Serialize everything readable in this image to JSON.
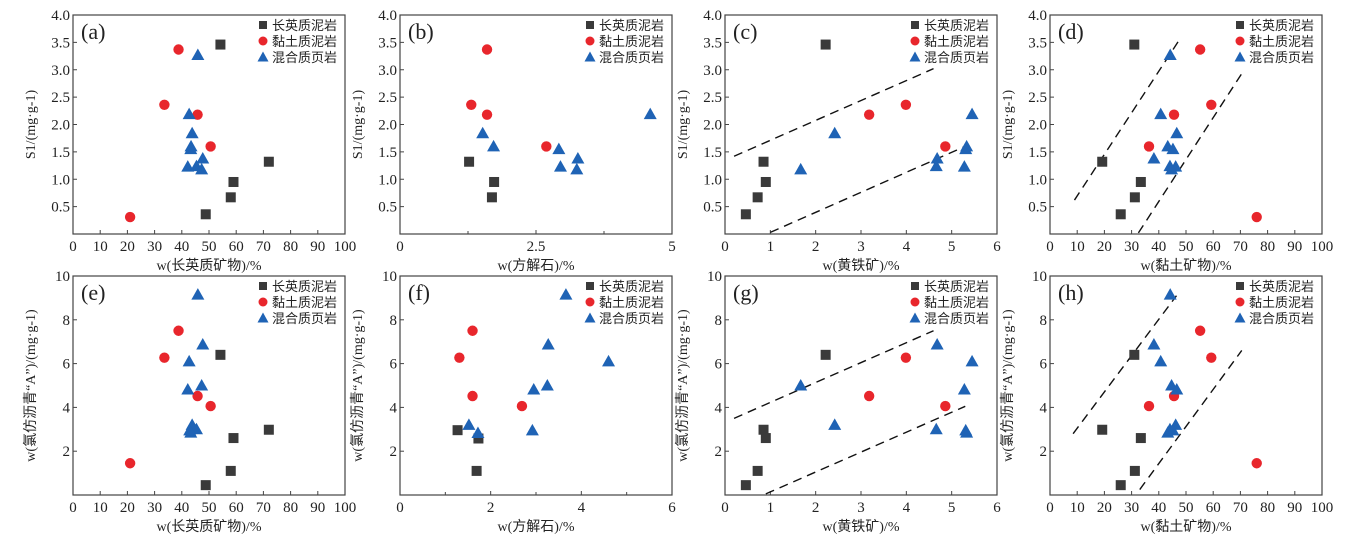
{
  "figure": {
    "legend_labels": [
      "长英质泥岩",
      "黏土质泥岩",
      "混合质页岩"
    ],
    "series_colors": {
      "长英质泥岩": "#3a3a3a",
      "黏土质泥岩": "#e8262c",
      "混合质页岩": "#1f63b5"
    },
    "series_markers": {
      "长英质泥岩": "square",
      "黏土质泥岩": "circle",
      "混合质页岩": "triangle"
    }
  },
  "chart_data": [
    {
      "id": "a",
      "panel_label": "(a)",
      "type": "scatter",
      "xlabel": "w(长英质矿物)/%",
      "ylabel": "S1/(mg·g-1)",
      "xlim": [
        0,
        100
      ],
      "ylim": [
        0,
        4.0
      ],
      "xticks": [
        0,
        10,
        20,
        30,
        40,
        50,
        60,
        70,
        80,
        90,
        100
      ],
      "xtick_labels": [
        "0",
        "10",
        "20",
        "30",
        "40",
        "50",
        "60",
        "70",
        "80",
        "90",
        "100"
      ],
      "yticks": [
        0.5,
        1.0,
        1.5,
        2.0,
        2.5,
        3.0,
        3.5,
        4.0
      ],
      "ytick_labels": [
        "0.5",
        "1.0",
        "1.5",
        "2.0",
        "2.5",
        "3.0",
        "3.5",
        "4.0"
      ],
      "legend": "top-right",
      "series": [
        {
          "name": "长英质泥岩",
          "points": [
            [
              54.2,
              3.46
            ],
            [
              72.0,
              1.32
            ],
            [
              59.0,
              0.95
            ],
            [
              58.0,
              0.67
            ],
            [
              48.8,
              0.36
            ]
          ]
        },
        {
          "name": "黏土质泥岩",
          "points": [
            [
              38.8,
              3.37
            ],
            [
              33.6,
              2.36
            ],
            [
              45.8,
              2.18
            ],
            [
              50.6,
              1.6
            ],
            [
              21.0,
              0.31
            ]
          ]
        },
        {
          "name": "混合质页岩",
          "points": [
            [
              45.9,
              3.27
            ],
            [
              42.7,
              2.19
            ],
            [
              43.8,
              1.84
            ],
            [
              43.4,
              1.6
            ],
            [
              43.3,
              1.55
            ],
            [
              47.7,
              1.38
            ],
            [
              42.2,
              1.23
            ],
            [
              45.4,
              1.24
            ],
            [
              47.3,
              1.18
            ]
          ]
        }
      ],
      "trendlines": []
    },
    {
      "id": "b",
      "panel_label": "(b)",
      "type": "scatter",
      "xlabel": "w(方解石)/%",
      "ylabel": "S1/(mg·g-1)",
      "xlim": [
        0,
        5
      ],
      "ylim": [
        0,
        4.0
      ],
      "xticks": [
        0,
        2.5,
        5
      ],
      "xtick_labels": [
        "0",
        "2.5",
        "5"
      ],
      "xminor": [
        1.25,
        3.75
      ],
      "yticks": [
        0.5,
        1.0,
        1.5,
        2.0,
        2.5,
        3.0,
        3.5,
        4.0
      ],
      "ytick_labels": [
        "0.5",
        "1.0",
        "1.5",
        "2.0",
        "2.5",
        "3.0",
        "3.5",
        "4.0"
      ],
      "legend": "top-right",
      "series": [
        {
          "name": "长英质泥岩",
          "points": [
            [
              1.27,
              1.32
            ],
            [
              1.73,
              0.95
            ],
            [
              1.69,
              0.67
            ]
          ]
        },
        {
          "name": "黏土质泥岩",
          "points": [
            [
              1.6,
              3.37
            ],
            [
              1.31,
              2.36
            ],
            [
              1.6,
              2.18
            ],
            [
              2.69,
              1.6
            ]
          ]
        },
        {
          "name": "混合质页岩",
          "points": [
            [
              4.6,
              2.19
            ],
            [
              1.52,
              1.84
            ],
            [
              1.72,
              1.6
            ],
            [
              2.92,
              1.55
            ],
            [
              3.27,
              1.38
            ],
            [
              2.95,
              1.23
            ],
            [
              3.25,
              1.18
            ]
          ]
        }
      ],
      "trendlines": []
    },
    {
      "id": "c",
      "panel_label": "(c)",
      "type": "scatter",
      "xlabel": "w(黄铁矿)/%",
      "ylabel": "S1/(mg·g-1)",
      "xlim": [
        0,
        6
      ],
      "ylim": [
        0,
        4.0
      ],
      "xticks": [
        0,
        1,
        2,
        3,
        4,
        5,
        6
      ],
      "xtick_labels": [
        "0",
        "1",
        "2",
        "3",
        "4",
        "5",
        "6"
      ],
      "yticks": [
        0.5,
        1.0,
        1.5,
        2.0,
        2.5,
        3.0,
        3.5,
        4.0
      ],
      "ytick_labels": [
        "0.5",
        "1.0",
        "1.5",
        "2.0",
        "2.5",
        "3.0",
        "3.5",
        "4.0"
      ],
      "legend": "top-right",
      "series": [
        {
          "name": "长英质泥岩",
          "points": [
            [
              2.22,
              3.46
            ],
            [
              0.85,
              1.32
            ],
            [
              0.9,
              0.95
            ],
            [
              0.72,
              0.67
            ],
            [
              0.46,
              0.36
            ]
          ]
        },
        {
          "name": "黏土质泥岩",
          "points": [
            [
              3.99,
              2.36
            ],
            [
              3.18,
              2.18
            ],
            [
              4.86,
              1.6
            ]
          ]
        },
        {
          "name": "混合质页岩",
          "points": [
            [
              5.45,
              2.19
            ],
            [
              2.42,
              1.84
            ],
            [
              5.33,
              1.6
            ],
            [
              5.31,
              1.55
            ],
            [
              4.68,
              1.38
            ],
            [
              1.67,
              1.18
            ],
            [
              4.66,
              1.24
            ],
            [
              5.28,
              1.23
            ]
          ]
        }
      ],
      "trendlines": [
        [
          [
            0.2,
            1.42
          ],
          [
            4.6,
            3.02
          ]
        ],
        [
          [
            1.0,
            0.03
          ],
          [
            5.35,
            1.62
          ]
        ]
      ]
    },
    {
      "id": "d",
      "panel_label": "(d)",
      "type": "scatter",
      "xlabel": "w(黏土矿物)/%",
      "ylabel": "S1/(mg·g-1)",
      "xlim": [
        0,
        100
      ],
      "ylim": [
        0,
        4.0
      ],
      "xticks": [
        0,
        10,
        20,
        30,
        40,
        50,
        60,
        70,
        80,
        90,
        100
      ],
      "xtick_labels": [
        "0",
        "10",
        "20",
        "30",
        "40",
        "50",
        "60",
        "70",
        "80",
        "90",
        "100"
      ],
      "yticks": [
        0.5,
        1.0,
        1.5,
        2.0,
        2.5,
        3.0,
        3.5,
        4.0
      ],
      "ytick_labels": [
        "0.5",
        "1.0",
        "1.5",
        "2.0",
        "2.5",
        "3.0",
        "3.5",
        "4.0"
      ],
      "legend": "top-right",
      "series": [
        {
          "name": "长英质泥岩",
          "points": [
            [
              31.0,
              3.46
            ],
            [
              19.2,
              1.32
            ],
            [
              33.4,
              0.95
            ],
            [
              31.2,
              0.67
            ],
            [
              26.0,
              0.36
            ]
          ]
        },
        {
          "name": "黏土质泥岩",
          "points": [
            [
              55.2,
              3.37
            ],
            [
              59.3,
              2.36
            ],
            [
              45.6,
              2.18
            ],
            [
              36.4,
              1.6
            ],
            [
              76.0,
              0.31
            ]
          ]
        },
        {
          "name": "混合质页岩",
          "points": [
            [
              44.2,
              3.27
            ],
            [
              40.7,
              2.19
            ],
            [
              46.6,
              1.84
            ],
            [
              43.3,
              1.6
            ],
            [
              45.2,
              1.55
            ],
            [
              38.2,
              1.38
            ],
            [
              44.1,
              1.24
            ],
            [
              46.2,
              1.23
            ],
            [
              44.7,
              1.18
            ]
          ]
        }
      ],
      "trendlines": [
        [
          [
            9.0,
            0.62
          ],
          [
            48.0,
            3.58
          ]
        ],
        [
          [
            32.5,
            0.02
          ],
          [
            70.5,
            2.93
          ]
        ]
      ]
    },
    {
      "id": "e",
      "panel_label": "(e)",
      "type": "scatter",
      "xlabel": "w(长英质矿物)/%",
      "ylabel": "w(氯仿沥青“A”)/(mg·g-1)",
      "xlim": [
        0,
        100
      ],
      "ylim": [
        0,
        10
      ],
      "xticks": [
        0,
        10,
        20,
        30,
        40,
        50,
        60,
        70,
        80,
        90,
        100
      ],
      "xtick_labels": [
        "0",
        "10",
        "20",
        "30",
        "40",
        "50",
        "60",
        "70",
        "80",
        "90",
        "100"
      ],
      "yticks": [
        2,
        4,
        6,
        8,
        10
      ],
      "ytick_labels": [
        "2",
        "4",
        "6",
        "8",
        "10"
      ],
      "legend": "top-right",
      "series": [
        {
          "name": "长英质泥岩",
          "points": [
            [
              54.2,
              6.4
            ],
            [
              72.0,
              2.98
            ],
            [
              59.0,
              2.6
            ],
            [
              58.0,
              1.1
            ],
            [
              48.8,
              0.45
            ]
          ]
        },
        {
          "name": "黏土质泥岩",
          "points": [
            [
              38.8,
              7.5
            ],
            [
              33.6,
              6.27
            ],
            [
              45.8,
              4.52
            ],
            [
              50.6,
              4.06
            ],
            [
              21.0,
              1.45
            ]
          ]
        },
        {
          "name": "混合质页岩",
          "points": [
            [
              45.9,
              9.15
            ],
            [
              47.7,
              6.87
            ],
            [
              42.7,
              6.1
            ],
            [
              47.3,
              5.0
            ],
            [
              42.2,
              4.82
            ],
            [
              43.8,
              3.2
            ],
            [
              45.4,
              3.0
            ],
            [
              42.9,
              2.95
            ],
            [
              43.3,
              2.85
            ]
          ]
        }
      ],
      "trendlines": []
    },
    {
      "id": "f",
      "panel_label": "(f)",
      "type": "scatter",
      "xlabel": "w(方解石)/%",
      "ylabel": "w(氯仿沥青“A”)/(mg·g-1)",
      "xlim": [
        0,
        6
      ],
      "ylim": [
        0,
        10
      ],
      "xticks": [
        0,
        2,
        4,
        6
      ],
      "xtick_labels": [
        "0",
        "2",
        "4",
        "6"
      ],
      "xminor": [
        1,
        3,
        5
      ],
      "yticks": [
        2,
        4,
        6,
        8,
        10
      ],
      "ytick_labels": [
        "2",
        "4",
        "6",
        "8",
        "10"
      ],
      "legend": "top-right",
      "series": [
        {
          "name": "长英质泥岩",
          "points": [
            [
              1.27,
              2.96
            ],
            [
              1.73,
              2.58
            ],
            [
              1.69,
              1.1
            ]
          ]
        },
        {
          "name": "黏土质泥岩",
          "points": [
            [
              1.6,
              7.5
            ],
            [
              1.31,
              6.27
            ],
            [
              1.6,
              4.52
            ],
            [
              2.69,
              4.06
            ]
          ]
        },
        {
          "name": "混合质页岩",
          "points": [
            [
              3.66,
              9.15
            ],
            [
              3.27,
              6.87
            ],
            [
              4.6,
              6.1
            ],
            [
              3.25,
              5.0
            ],
            [
              2.95,
              4.82
            ],
            [
              1.52,
              3.2
            ],
            [
              1.72,
              2.83
            ],
            [
              2.92,
              2.95
            ]
          ]
        }
      ],
      "trendlines": []
    },
    {
      "id": "g",
      "panel_label": "(g)",
      "type": "scatter",
      "xlabel": "w(黄铁矿)/%",
      "ylabel": "w(氯仿沥青“A”)/(mg·g-1)",
      "xlim": [
        0,
        6
      ],
      "ylim": [
        0,
        10
      ],
      "xticks": [
        0,
        1,
        2,
        3,
        4,
        5,
        6
      ],
      "xtick_labels": [
        "0",
        "1",
        "2",
        "3",
        "4",
        "5",
        "6"
      ],
      "yticks": [
        2,
        4,
        6,
        8,
        10
      ],
      "ytick_labels": [
        "2",
        "4",
        "6",
        "8",
        "10"
      ],
      "legend": "top-right",
      "series": [
        {
          "name": "长英质泥岩",
          "points": [
            [
              2.22,
              6.4
            ],
            [
              0.85,
              2.98
            ],
            [
              0.9,
              2.6
            ],
            [
              0.72,
              1.1
            ],
            [
              0.46,
              0.45
            ]
          ]
        },
        {
          "name": "黏土质泥岩",
          "points": [
            [
              3.99,
              6.27
            ],
            [
              3.18,
              4.52
            ],
            [
              4.86,
              4.06
            ]
          ]
        },
        {
          "name": "混合质页岩",
          "points": [
            [
              4.68,
              6.87
            ],
            [
              5.45,
              6.1
            ],
            [
              1.67,
              5.0
            ],
            [
              5.28,
              4.82
            ],
            [
              2.42,
              3.2
            ],
            [
              4.66,
              3.0
            ],
            [
              5.31,
              2.95
            ],
            [
              5.33,
              2.85
            ]
          ]
        }
      ],
      "trendlines": [
        [
          [
            0.2,
            3.5
          ],
          [
            4.6,
            7.5
          ]
        ],
        [
          [
            0.9,
            0.05
          ],
          [
            5.3,
            4.05
          ]
        ]
      ]
    },
    {
      "id": "h",
      "panel_label": "(h)",
      "type": "scatter",
      "xlabel": "w(黏土矿物)/%",
      "ylabel": "w(氯仿沥青“A”)/(mg·g-1)",
      "xlim": [
        0,
        100
      ],
      "ylim": [
        0,
        10
      ],
      "xticks": [
        0,
        10,
        20,
        30,
        40,
        50,
        60,
        70,
        80,
        90,
        100
      ],
      "xtick_labels": [
        "0",
        "10",
        "20",
        "30",
        "40",
        "50",
        "60",
        "70",
        "80",
        "90",
        "100"
      ],
      "yticks": [
        2,
        4,
        6,
        8,
        10
      ],
      "ytick_labels": [
        "2",
        "4",
        "6",
        "8",
        "10"
      ],
      "legend": "top-right",
      "series": [
        {
          "name": "长英质泥岩",
          "points": [
            [
              31.0,
              6.4
            ],
            [
              19.2,
              2.98
            ],
            [
              33.4,
              2.6
            ],
            [
              31.2,
              1.1
            ],
            [
              26.0,
              0.45
            ]
          ]
        },
        {
          "name": "黏土质泥岩",
          "points": [
            [
              55.2,
              7.5
            ],
            [
              59.3,
              6.27
            ],
            [
              45.6,
              4.52
            ],
            [
              36.4,
              4.06
            ],
            [
              76.0,
              1.45
            ]
          ]
        },
        {
          "name": "混合质页岩",
          "points": [
            [
              44.2,
              9.15
            ],
            [
              38.2,
              6.87
            ],
            [
              40.7,
              6.1
            ],
            [
              44.7,
              5.0
            ],
            [
              46.6,
              4.82
            ],
            [
              46.2,
              3.2
            ],
            [
              44.1,
              3.0
            ],
            [
              43.3,
              2.85
            ],
            [
              45.2,
              2.95
            ]
          ]
        }
      ],
      "trendlines": [
        [
          [
            8.5,
            2.8
          ],
          [
            46.5,
            9.1
          ]
        ],
        [
          [
            33.0,
            0.25
          ],
          [
            70.5,
            6.6
          ]
        ]
      ]
    }
  ]
}
